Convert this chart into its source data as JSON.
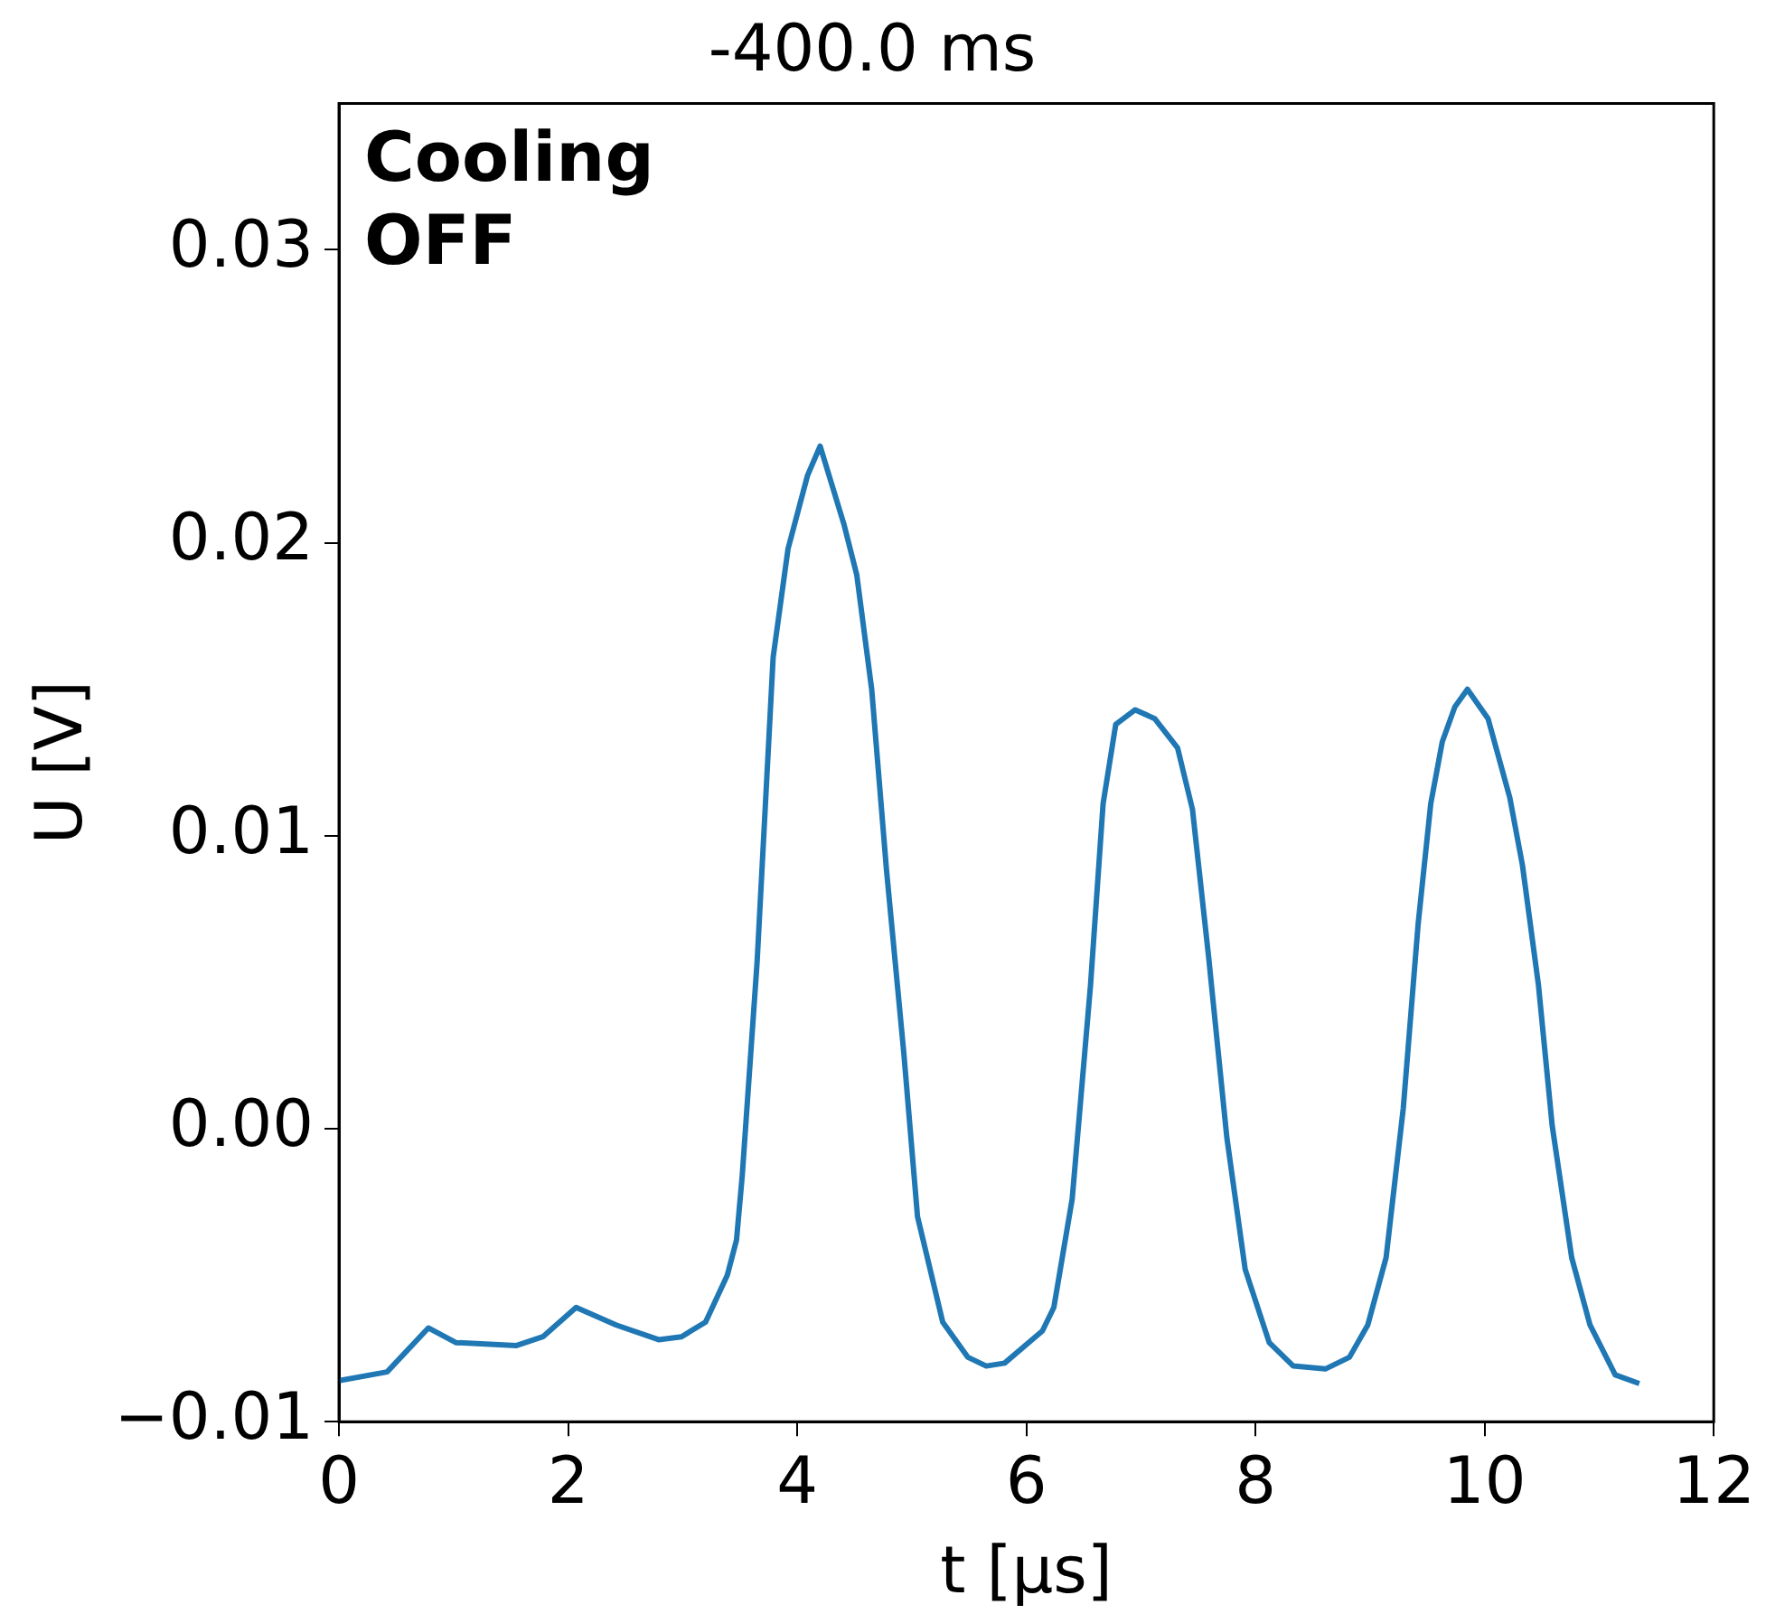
{
  "chart_data": {
    "type": "line",
    "title": "-400.0 ms",
    "xlabel": "t [µs]",
    "ylabel": "U [V]",
    "annotations": [
      "Cooling\nOFF"
    ],
    "xlim": [
      0,
      12
    ],
    "xticks": [
      0,
      2,
      4,
      6,
      8,
      10,
      12
    ],
    "ylim": [
      -0.01,
      0.035
    ],
    "yticks": [
      {
        "value": -0.01,
        "label": "−0.01"
      },
      {
        "value": 0,
        "label": "0.00"
      },
      {
        "value": 0.01,
        "label": "0.01"
      },
      {
        "value": 0.02,
        "label": "0.02"
      },
      {
        "value": 0.03,
        "label": "0.03"
      }
    ],
    "grid": false,
    "legend": false,
    "marker": "none",
    "line_style": "solid",
    "series": [
      {
        "color": "#1f77b4",
        "x": [
          0,
          0.42,
          0.78,
          1.02,
          1.55,
          1.78,
          2.07,
          2.42,
          2.79,
          2.99,
          3.2,
          3.39,
          3.47,
          3.52,
          3.65,
          3.79,
          3.92,
          4.09,
          4.2,
          4.41,
          4.52,
          4.65,
          4.78,
          4.93,
          5.02,
          5.05,
          5.27,
          5.49,
          5.65,
          5.81,
          6.14,
          6.24,
          6.4,
          6.56,
          6.67,
          6.78,
          6.95,
          7.12,
          7.32,
          7.45,
          7.59,
          7.75,
          7.91,
          8.12,
          8.33,
          8.61,
          8.82,
          8.98,
          9.14,
          9.29,
          9.42,
          9.53,
          9.63,
          9.74,
          9.85,
          10.03,
          10.22,
          10.33,
          10.47,
          10.59,
          10.76,
          10.92,
          11.14,
          11.35
        ],
        "values": [
          -0.0086,
          -0.0083,
          -0.0068,
          -0.0073,
          -0.0074,
          -0.0071,
          -0.0061,
          -0.0067,
          -0.0072,
          -0.0071,
          -0.0066,
          -0.005,
          -0.0038,
          -0.0016,
          0.0057,
          0.0161,
          0.0198,
          0.0223,
          0.0233,
          0.0206,
          0.0189,
          0.015,
          0.0088,
          0.0026,
          -0.0016,
          -0.003,
          -0.0066,
          -0.0078,
          -0.0081,
          -0.008,
          -0.0069,
          -0.0061,
          -0.0024,
          0.0049,
          0.0111,
          0.0138,
          0.0143,
          0.014,
          0.013,
          0.0109,
          0.0059,
          -0.0003,
          -0.0048,
          -0.0073,
          -0.0081,
          -0.0082,
          -0.0078,
          -0.0067,
          -0.0044,
          0.0007,
          0.007,
          0.0111,
          0.0132,
          0.0144,
          0.015,
          0.014,
          0.0113,
          0.009,
          0.0049,
          0.0001,
          -0.0044,
          -0.0067,
          -0.0084,
          -0.0087
        ]
      }
    ]
  }
}
